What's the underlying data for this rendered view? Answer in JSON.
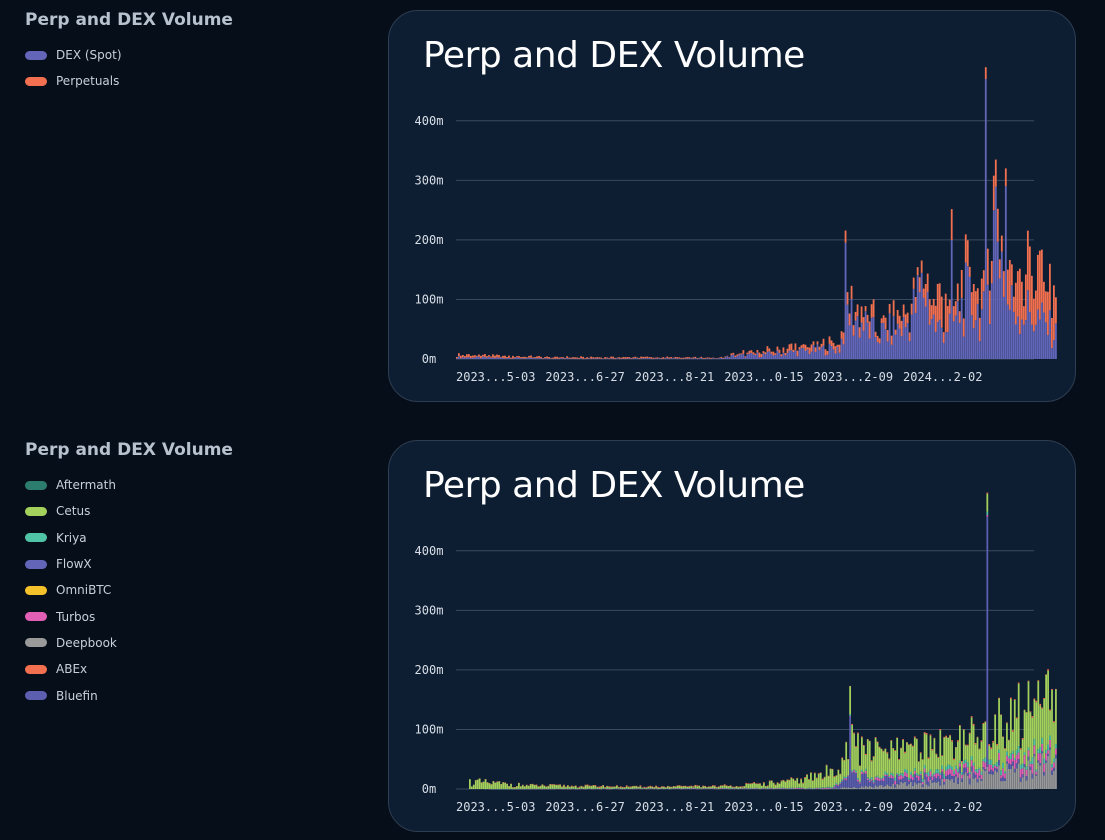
{
  "legend_top": {
    "title": "Perp and DEX Volume",
    "items": [
      {
        "label": "DEX (Spot)",
        "color": "#6366b8"
      },
      {
        "label": "Perpetuals",
        "color": "#f2704f"
      }
    ]
  },
  "legend_bottom": {
    "title": "Perp and DEX Volume",
    "items": [
      {
        "label": "Aftermath",
        "color": "#2c7d6d"
      },
      {
        "label": "Cetus",
        "color": "#a4d15c"
      },
      {
        "label": "Kriya",
        "color": "#4fc4a6"
      },
      {
        "label": "FlowX",
        "color": "#6366b8"
      },
      {
        "label": "OmniBTC",
        "color": "#f5c12a"
      },
      {
        "label": "Turbos",
        "color": "#e35fb5"
      },
      {
        "label": "Deepbook",
        "color": "#9a9a9a"
      },
      {
        "label": "ABEx",
        "color": "#f2704f"
      },
      {
        "label": "Bluefin",
        "color": "#5c5eb0"
      }
    ]
  },
  "chart_data": [
    {
      "type": "bar",
      "stacked": true,
      "title": "Perp and DEX Volume",
      "ylim": [
        0,
        450
      ],
      "y_ticks": [
        "0m",
        "100m",
        "200m",
        "300m",
        "400m"
      ],
      "x_tick_labels": [
        "2023...5-03",
        "2023...6-27",
        "2023...8-21",
        "2023...0-15",
        "2023...2-09",
        "2024...2-02"
      ],
      "grid": true,
      "series": [
        {
          "name": "DEX (Spot)",
          "color": "#6366b8",
          "profile": [
            [
              0,
              3
            ],
            [
              0.15,
              1
            ],
            [
              0.3,
              1
            ],
            [
              0.44,
              1
            ],
            [
              0.46,
              5
            ],
            [
              0.52,
              8
            ],
            [
              0.6,
              15
            ],
            [
              0.64,
              18
            ],
            [
              0.65,
              80
            ],
            [
              0.7,
              40
            ],
            [
              0.75,
              55
            ],
            [
              0.78,
              120
            ],
            [
              0.8,
              50
            ],
            [
              0.83,
              60
            ],
            [
              0.85,
              100
            ],
            [
              0.88,
              70
            ],
            [
              0.9,
              250
            ],
            [
              0.92,
              90
            ],
            [
              0.95,
              80
            ],
            [
              0.98,
              60
            ],
            [
              1,
              40
            ]
          ],
          "spikes": [
            [
              0.648,
              195
            ],
            [
              0.825,
              195
            ],
            [
              0.827,
              200
            ],
            [
              0.883,
              470
            ],
            [
              0.915,
              290
            ]
          ]
        },
        {
          "name": "Perpetuals",
          "color": "#f2704f",
          "profile": [
            [
              0,
              4
            ],
            [
              0.15,
              2
            ],
            [
              0.3,
              2
            ],
            [
              0.44,
              1
            ],
            [
              0.46,
              3
            ],
            [
              0.52,
              6
            ],
            [
              0.6,
              8
            ],
            [
              0.64,
              10
            ],
            [
              0.65,
              15
            ],
            [
              0.7,
              20
            ],
            [
              0.75,
              15
            ],
            [
              0.78,
              25
            ],
            [
              0.8,
              40
            ],
            [
              0.83,
              40
            ],
            [
              0.85,
              50
            ],
            [
              0.88,
              40
            ],
            [
              0.9,
              60
            ],
            [
              0.92,
              60
            ],
            [
              0.95,
              70
            ],
            [
              0.98,
              80
            ],
            [
              1,
              70
            ]
          ],
          "spikes": [
            [
              0.883,
              20
            ],
            [
              0.915,
              30
            ]
          ]
        }
      ]
    },
    {
      "type": "bar",
      "stacked": true,
      "title": "Perp and DEX Volume",
      "ylim": [
        0,
        450
      ],
      "y_ticks": [
        "0m",
        "100m",
        "200m",
        "300m",
        "400m"
      ],
      "x_tick_labels": [
        "2023...5-03",
        "2023...6-27",
        "2023...8-21",
        "2023...0-15",
        "2023...2-09",
        "2024...2-02"
      ],
      "grid": true,
      "series": [
        {
          "name": "Deepbook",
          "color": "#9a9a9a",
          "profile": [
            [
              0,
              0
            ],
            [
              0.6,
              0
            ],
            [
              0.7,
              5
            ],
            [
              0.8,
              12
            ],
            [
              0.9,
              25
            ],
            [
              1,
              45
            ]
          ],
          "spikes": []
        },
        {
          "name": "Bluefin",
          "color": "#5c5eb0",
          "profile": [
            [
              0,
              0
            ],
            [
              0.62,
              0
            ],
            [
              0.65,
              20
            ],
            [
              0.7,
              10
            ],
            [
              0.8,
              8
            ],
            [
              0.9,
              6
            ],
            [
              1,
              4
            ]
          ],
          "spikes": [
            [
              0.648,
              120
            ],
            [
              0.883,
              420
            ]
          ]
        },
        {
          "name": "Turbos",
          "color": "#e35fb5",
          "profile": [
            [
              0,
              0
            ],
            [
              0.6,
              1
            ],
            [
              0.8,
              6
            ],
            [
              0.9,
              8
            ],
            [
              1,
              12
            ]
          ],
          "spikes": []
        },
        {
          "name": "Kriya",
          "color": "#4fc4a6",
          "profile": [
            [
              0,
              0
            ],
            [
              0.6,
              1
            ],
            [
              0.8,
              5
            ],
            [
              0.9,
              6
            ],
            [
              1,
              8
            ]
          ],
          "spikes": []
        },
        {
          "name": "Cetus",
          "color": "#a4d15c",
          "profile": [
            [
              0,
              12
            ],
            [
              0.1,
              5
            ],
            [
              0.3,
              2
            ],
            [
              0.45,
              3
            ],
            [
              0.55,
              10
            ],
            [
              0.62,
              25
            ],
            [
              0.65,
              50
            ],
            [
              0.7,
              40
            ],
            [
              0.75,
              35
            ],
            [
              0.8,
              45
            ],
            [
              0.85,
              40
            ],
            [
              0.9,
              55
            ],
            [
              0.95,
              70
            ],
            [
              1,
              80
            ]
          ],
          "spikes": [
            [
              0.883,
              30
            ],
            [
              0.98,
              100
            ]
          ]
        },
        {
          "name": "ABEx",
          "color": "#f2704f",
          "profile": [
            [
              0,
              0
            ],
            [
              0.2,
              1
            ],
            [
              0.4,
              1
            ],
            [
              0.6,
              1
            ],
            [
              1,
              2
            ]
          ],
          "spikes": []
        }
      ]
    }
  ]
}
